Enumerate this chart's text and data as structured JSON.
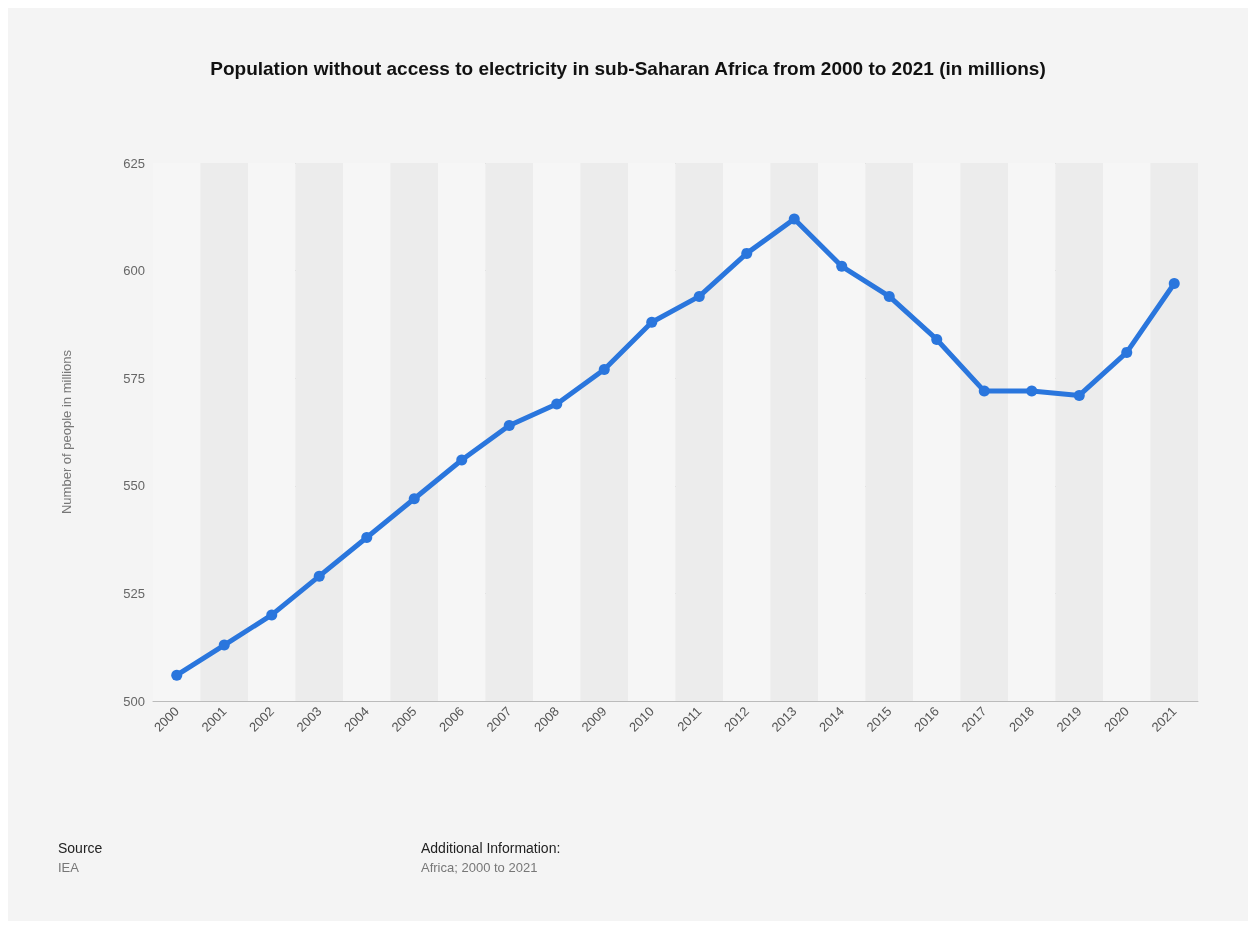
{
  "chart_data": {
    "type": "line",
    "title": "Population without access to electricity in sub-Saharan Africa from 2000 to 2021 (in millions)",
    "ylabel": "Number of people in millions",
    "categories": [
      "2000",
      "2001",
      "2002",
      "2003",
      "2004",
      "2005",
      "2006",
      "2007",
      "2008",
      "2009",
      "2010",
      "2011",
      "2012",
      "2013",
      "2014",
      "2015",
      "2016",
      "2017",
      "2018",
      "2019",
      "2020",
      "2021"
    ],
    "series": [
      {
        "color": "#2a76dd",
        "values": [
          506,
          513,
          520,
          529,
          538,
          547,
          556,
          564,
          569,
          577,
          588,
          594,
          604,
          612,
          601,
          594,
          584,
          572,
          572,
          571,
          581,
          597
        ]
      }
    ],
    "ylim": [
      500,
      625
    ],
    "yticks": [
      500,
      525,
      550,
      575,
      600,
      625
    ],
    "grid": "y",
    "marker": "circle",
    "line_style": "solid",
    "annotations": [
      "Source",
      "IEA",
      "Additional Information:",
      "Africa; 2000 to 2021"
    ]
  }
}
